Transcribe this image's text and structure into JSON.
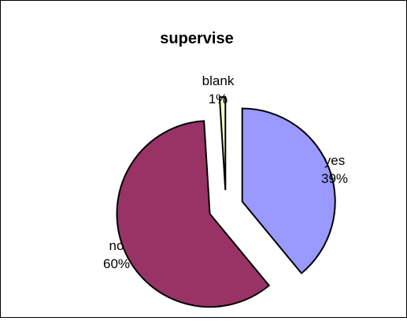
{
  "chart_data": {
    "type": "pie",
    "title": "supervise",
    "exploded": true,
    "slices": [
      {
        "label": "yes",
        "value": 39,
        "percent_label": "39%",
        "color": "#9999FF"
      },
      {
        "label": "no",
        "value": 60,
        "percent_label": "60%",
        "color": "#993366"
      },
      {
        "label": "blank",
        "value": 1,
        "percent_label": "1%",
        "color": "#FFFFCC"
      }
    ]
  }
}
